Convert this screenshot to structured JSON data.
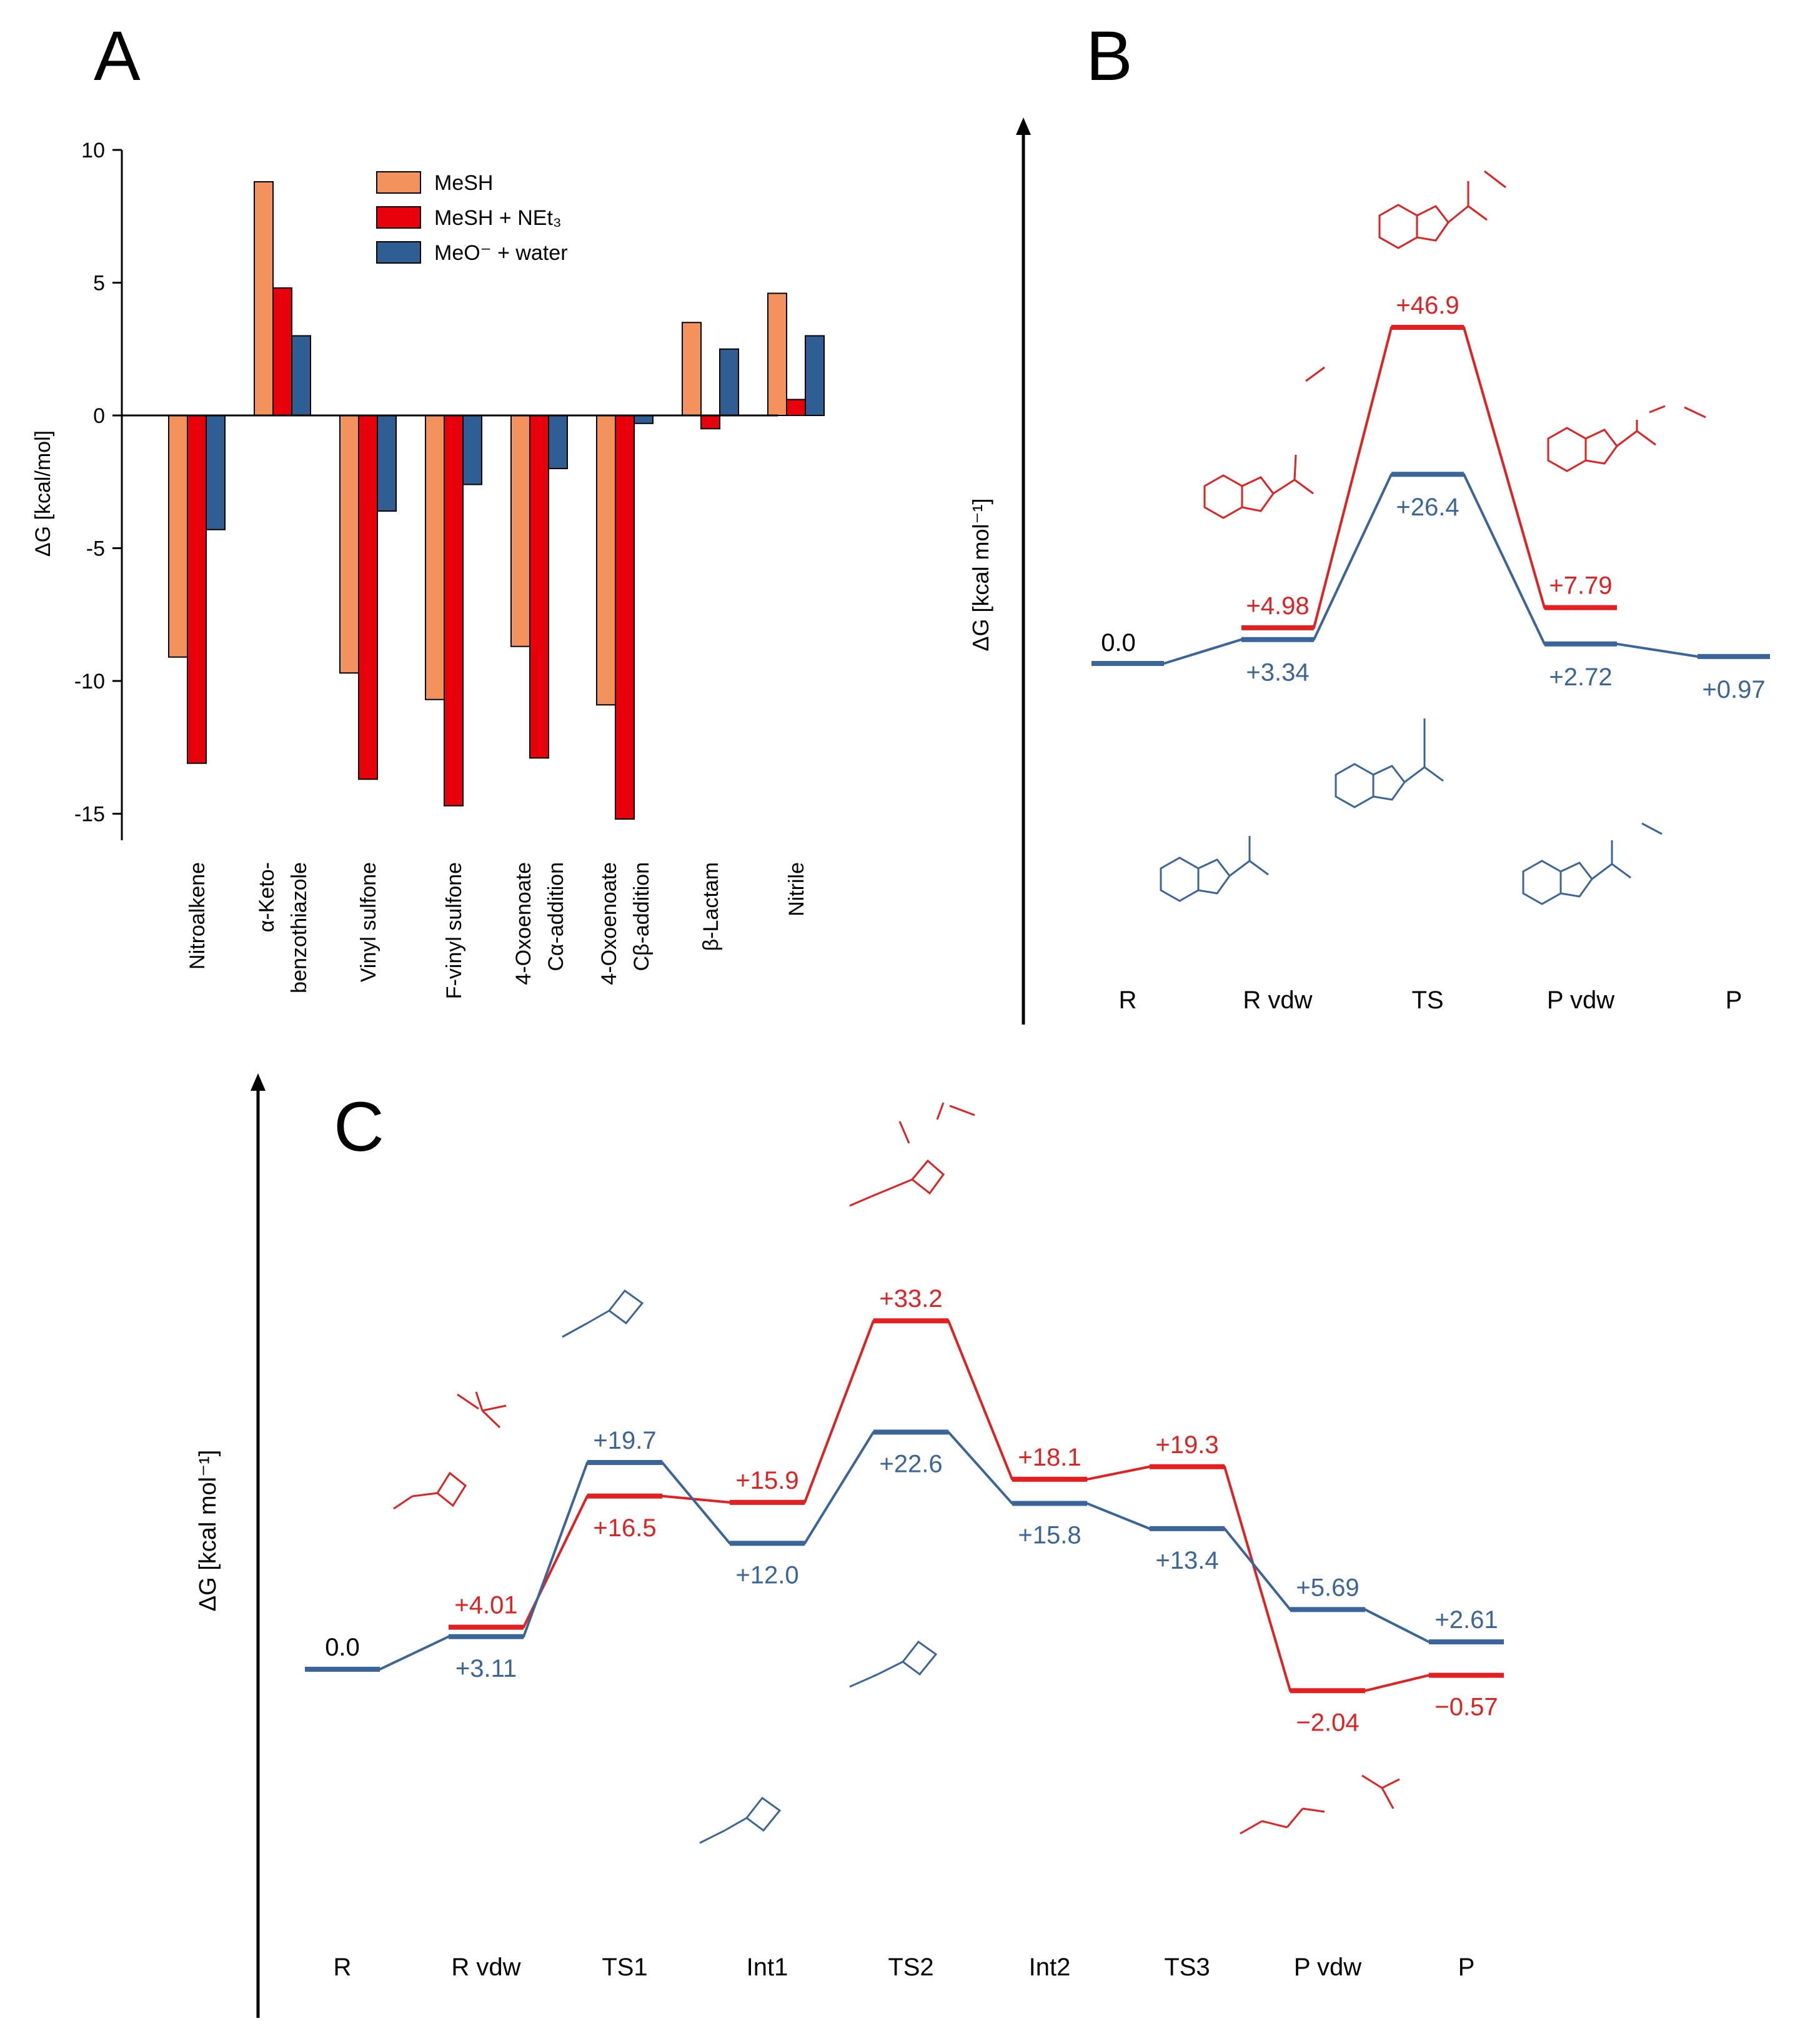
{
  "colors": {
    "mesh": "#F4925E",
    "mesh_net3": "#E8000B",
    "meo_water": "#2E5E93",
    "black": "#000000",
    "red_line": "#E51F1F",
    "blue_line": "#3A659B"
  },
  "panel_labels": {
    "a": "A",
    "b": "B",
    "c": "C"
  },
  "chart_data": [
    {
      "panel": "A",
      "type": "bar",
      "ylabel": "ΔG [kcal/mol]",
      "ylim": [
        -16,
        10
      ],
      "yticks": [
        10,
        5,
        0,
        -5,
        -10,
        -15
      ],
      "ytick_labels": [
        "10",
        "5",
        "0",
        "-5",
        "-10",
        "-15"
      ],
      "categories": [
        {
          "lines": [
            "Nitroalkene"
          ]
        },
        {
          "lines": [
            "α-Keto-",
            "benzothiazole"
          ]
        },
        {
          "lines": [
            "Vinyl sulfone"
          ]
        },
        {
          "lines": [
            "F-vinyl sulfone"
          ]
        },
        {
          "lines": [
            "4-Oxoenoate",
            "Cα-addition"
          ]
        },
        {
          "lines": [
            "4-Oxoenoate",
            "Cβ-addition"
          ]
        },
        {
          "lines": [
            "β-Lactam"
          ]
        },
        {
          "lines": [
            "Nitrile"
          ]
        }
      ],
      "series": [
        {
          "name": "MeSH",
          "color": "#F4925E",
          "values": [
            -9.1,
            8.8,
            -9.7,
            -10.7,
            -8.7,
            -10.9,
            3.5,
            4.6
          ]
        },
        {
          "name": "MeSH + NEt₃",
          "color": "#E8000B",
          "values": [
            -13.1,
            4.8,
            -13.7,
            -14.7,
            -12.9,
            -15.2,
            -0.5,
            0.6
          ]
        },
        {
          "name": "MeO⁻ + water",
          "color": "#2E5E93",
          "values": [
            -4.3,
            3.0,
            -3.6,
            -2.6,
            -2.0,
            -0.3,
            2.5,
            3.0
          ]
        }
      ],
      "legend": [
        "MeSH",
        "MeSH + NEt₃",
        "MeO⁻ + water"
      ],
      "legend_position": "top-right"
    },
    {
      "panel": "B",
      "type": "line",
      "ylabel": "ΔG [kcal mol⁻¹]",
      "stages": [
        "R",
        "R vdw",
        "TS",
        "P vdw",
        "P"
      ],
      "ylim": [
        -10,
        62
      ],
      "origin_label": "0.0",
      "series": [
        {
          "name": "MeSH + NEt₃",
          "color": "#E51F1F",
          "stages": [
            1,
            2,
            3
          ],
          "values": [
            4.98,
            46.9,
            7.79
          ],
          "labels": [
            "+4.98",
            "+46.9",
            "+7.79"
          ]
        },
        {
          "name": "MeO⁻ + water",
          "color": "#3A659B",
          "stages": [
            0,
            1,
            2,
            3,
            4
          ],
          "values": [
            0.0,
            3.34,
            26.4,
            2.72,
            0.97
          ],
          "labels": [
            "",
            "+3.34",
            "+26.4",
            "+2.72",
            "+0.97"
          ]
        }
      ]
    },
    {
      "panel": "C",
      "type": "line",
      "ylabel": "ΔG [kcal mol⁻¹]",
      "stages": [
        "R",
        "R vdw",
        "TS1",
        "Int1",
        "TS2",
        "Int2",
        "TS3",
        "P vdw",
        "P"
      ],
      "ylim": [
        -8,
        40
      ],
      "origin_label": "0.0",
      "series": [
        {
          "name": "MeSH + NEt₃",
          "color": "#E51F1F",
          "stages": [
            1,
            2,
            3,
            4,
            5,
            6,
            7,
            8
          ],
          "values": [
            4.01,
            16.5,
            15.9,
            33.2,
            18.1,
            19.3,
            -2.04,
            -0.57
          ],
          "labels": [
            "+4.01",
            "+16.5",
            "+15.9",
            "+33.2",
            "+18.1",
            "+19.3",
            "−2.04",
            "−0.57"
          ]
        },
        {
          "name": "MeO⁻ + water",
          "color": "#3A659B",
          "stages": [
            0,
            1,
            2,
            3,
            4,
            5,
            6,
            7,
            8
          ],
          "values": [
            0.0,
            3.11,
            19.7,
            12.0,
            22.6,
            15.8,
            13.4,
            5.69,
            2.61
          ],
          "labels": [
            "",
            "+3.11",
            "+19.7",
            "+12.0",
            "+22.6",
            "+15.8",
            "+13.4",
            "+5.69",
            "+2.61"
          ]
        }
      ]
    }
  ]
}
